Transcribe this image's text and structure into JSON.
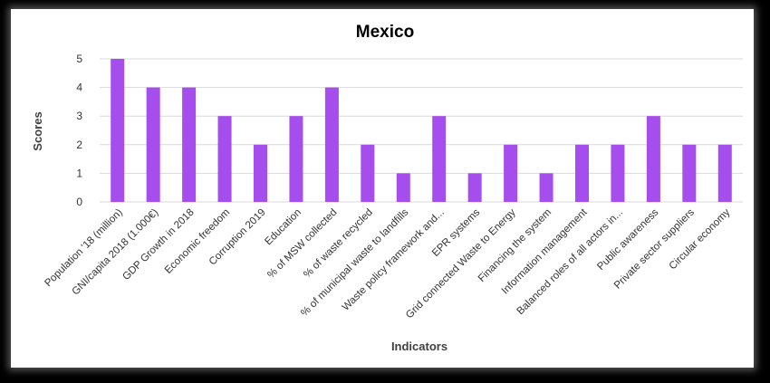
{
  "chart_data": {
    "type": "bar",
    "title": "Mexico",
    "xlabel": "Indicators",
    "ylabel": "Scores",
    "ylim": [
      0,
      5
    ],
    "yticks": [
      0,
      1,
      2,
      3,
      4,
      5
    ],
    "grid": true,
    "legend": "none",
    "bar_color": "#a64ded",
    "categories": [
      "Population '18 (million)",
      "GNI/capita 2018 (1.000€)",
      "GDP Growth in 2018",
      "Economic freedom",
      "Corruption 2019",
      "Education",
      "% of MSW collected",
      "% of waste recycled",
      "% of municipal waste to landfills",
      "Waste policy framework and...",
      "EPR systems",
      "Grid connected Waste to Energy",
      "Financing the system",
      "Information management",
      "Balanced roles of all actors in...",
      "Public awareness",
      "Private sector suppliers",
      "Circular economy"
    ],
    "values": [
      5,
      4,
      4,
      3,
      2,
      3,
      4,
      2,
      1,
      3,
      1,
      2,
      1,
      2,
      2,
      3,
      2,
      2
    ]
  }
}
